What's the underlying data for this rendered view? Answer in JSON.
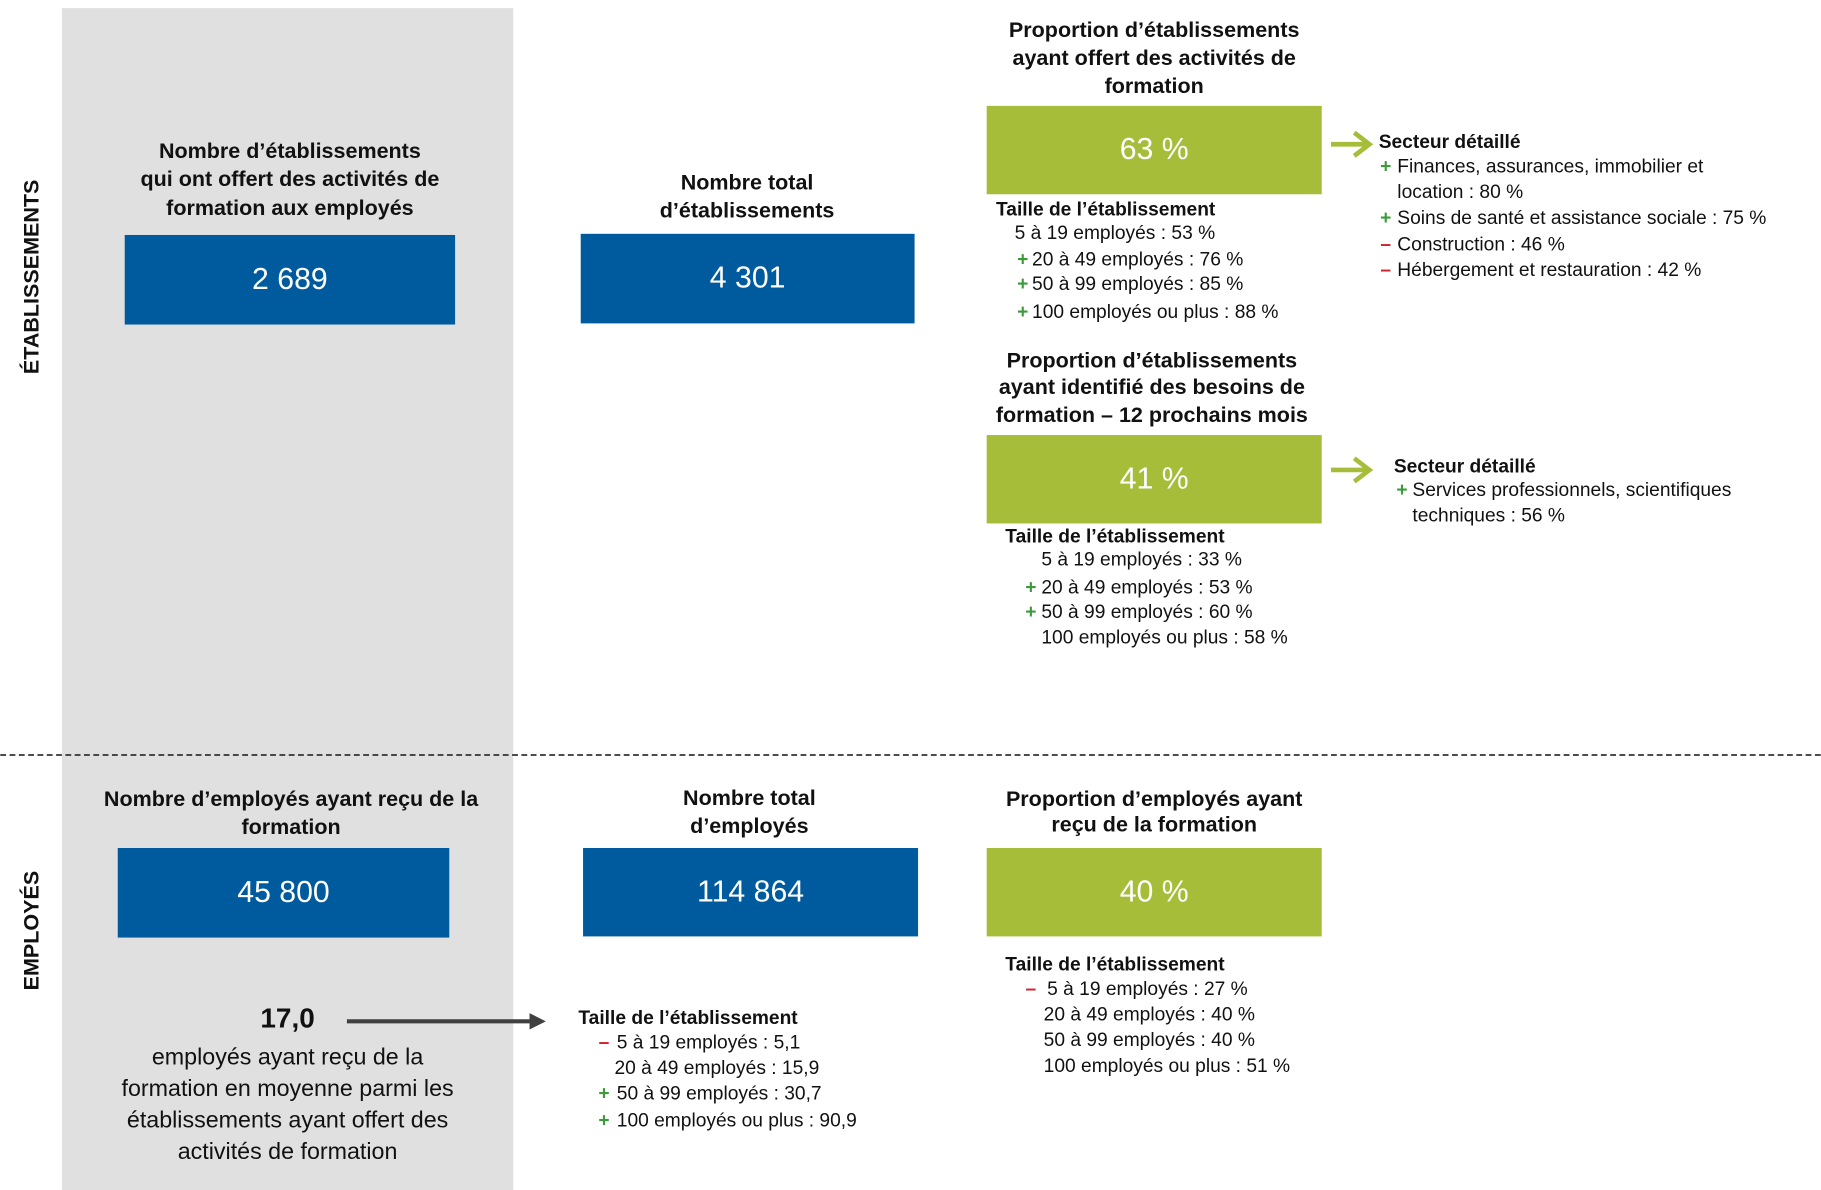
{
  "side_labels": [
    "ÉTABLISSEMENTS",
    "EMPLOYÉS"
  ],
  "card_colors": {
    "blue": "#005b9e",
    "green": "#a5bd39"
  },
  "sign_colors": {
    "+": "#3c9a3c",
    "–": "#d3202c"
  },
  "cards": [
    {
      "title": [
        "Nombre d’établissements",
        "qui ont offert des activités de",
        "formation aux employés"
      ],
      "value": "2 689",
      "color": "blue"
    },
    {
      "title": [
        "Nombre total",
        "d’établissements"
      ],
      "value": "4 301",
      "color": "blue"
    },
    {
      "title": [
        "Proportion d’établissements",
        "ayant offert des activités de",
        "formation"
      ],
      "value": "63 %",
      "color": "green"
    },
    {
      "title": [
        "Proportion d’établissements",
        "ayant identifié des besoins de",
        "formation – 12 prochains mois"
      ],
      "value": "41 %",
      "color": "green"
    },
    {
      "title": [
        "Nombre d’employés ayant reçu de la",
        "formation"
      ],
      "value": "45 800",
      "color": "blue"
    },
    {
      "title": [
        "Nombre total",
        "d’employés"
      ],
      "value": "114 864",
      "color": "blue"
    },
    {
      "title": [
        "Proportion d’employés ayant",
        "reçu de la formation"
      ],
      "value": "40 %",
      "color": "green"
    }
  ],
  "lists": [
    {
      "title": "Taille de l’établissement",
      "items": [
        {
          "lines": [
            "5 à 19 employés : 53 %"
          ]
        },
        {
          "sign": "+",
          "lines": [
            "20 à 49 employés : 76 %"
          ]
        },
        {
          "sign": "+",
          "lines": [
            "50 à 99 employés : 85 %"
          ]
        },
        {
          "sign": "+",
          "lines": [
            "100 employés ou plus : 88 %"
          ]
        }
      ]
    },
    {
      "title": "Secteur détaillé",
      "items": [
        {
          "sign": "+",
          "lines": [
            "Finances, assurances, immobilier et",
            "location : 80 %"
          ]
        },
        {
          "sign": "+",
          "lines": [
            "Soins de santé et assistance sociale : 75 %"
          ]
        },
        {
          "sign": "–",
          "lines": [
            "Construction : 46 %"
          ]
        },
        {
          "sign": "–",
          "lines": [
            "Hébergement et restauration : 42 %"
          ]
        }
      ]
    },
    {
      "title": "Taille de l’établissement",
      "items": [
        {
          "lines": [
            "5 à 19 employés : 33 %"
          ]
        },
        {
          "sign": "+",
          "lines": [
            "20 à 49 employés : 53 %"
          ]
        },
        {
          "sign": "+",
          "lines": [
            "50 à 99 employés : 60 %"
          ]
        },
        {
          "lines": [
            "100 employés ou plus : 58 %"
          ]
        }
      ]
    },
    {
      "title": "Secteur détaillé",
      "items": [
        {
          "sign": "+",
          "lines": [
            "Services professionnels, scientifiques",
            "techniques : 56 %"
          ]
        }
      ]
    },
    {
      "title": "Taille de l’établissement",
      "items": [
        {
          "sign": "–",
          "lines": [
            "5 à 19 employés : 27 %"
          ]
        },
        {
          "lines": [
            "20 à 49 employés : 40 %"
          ]
        },
        {
          "lines": [
            "50 à 99 employés : 40 %"
          ]
        },
        {
          "lines": [
            "100 employés ou plus : 51 %"
          ]
        }
      ]
    },
    {
      "title": "Taille de l’établissement",
      "items": [
        {
          "sign": "–",
          "lines": [
            "5 à 19 employés : 5,1"
          ]
        },
        {
          "lines": [
            "20 à 49 employés : 15,9"
          ]
        },
        {
          "sign": "+",
          "lines": [
            "50 à 99 employés : 30,7"
          ]
        },
        {
          "sign": "+",
          "lines": [
            "100 employés ou plus : 90,9"
          ]
        }
      ]
    }
  ],
  "average": {
    "value": "17,0",
    "text": [
      "employés ayant reçu de la",
      "formation en moyenne parmi les",
      "établissements ayant offert des",
      "activités de formation"
    ]
  }
}
